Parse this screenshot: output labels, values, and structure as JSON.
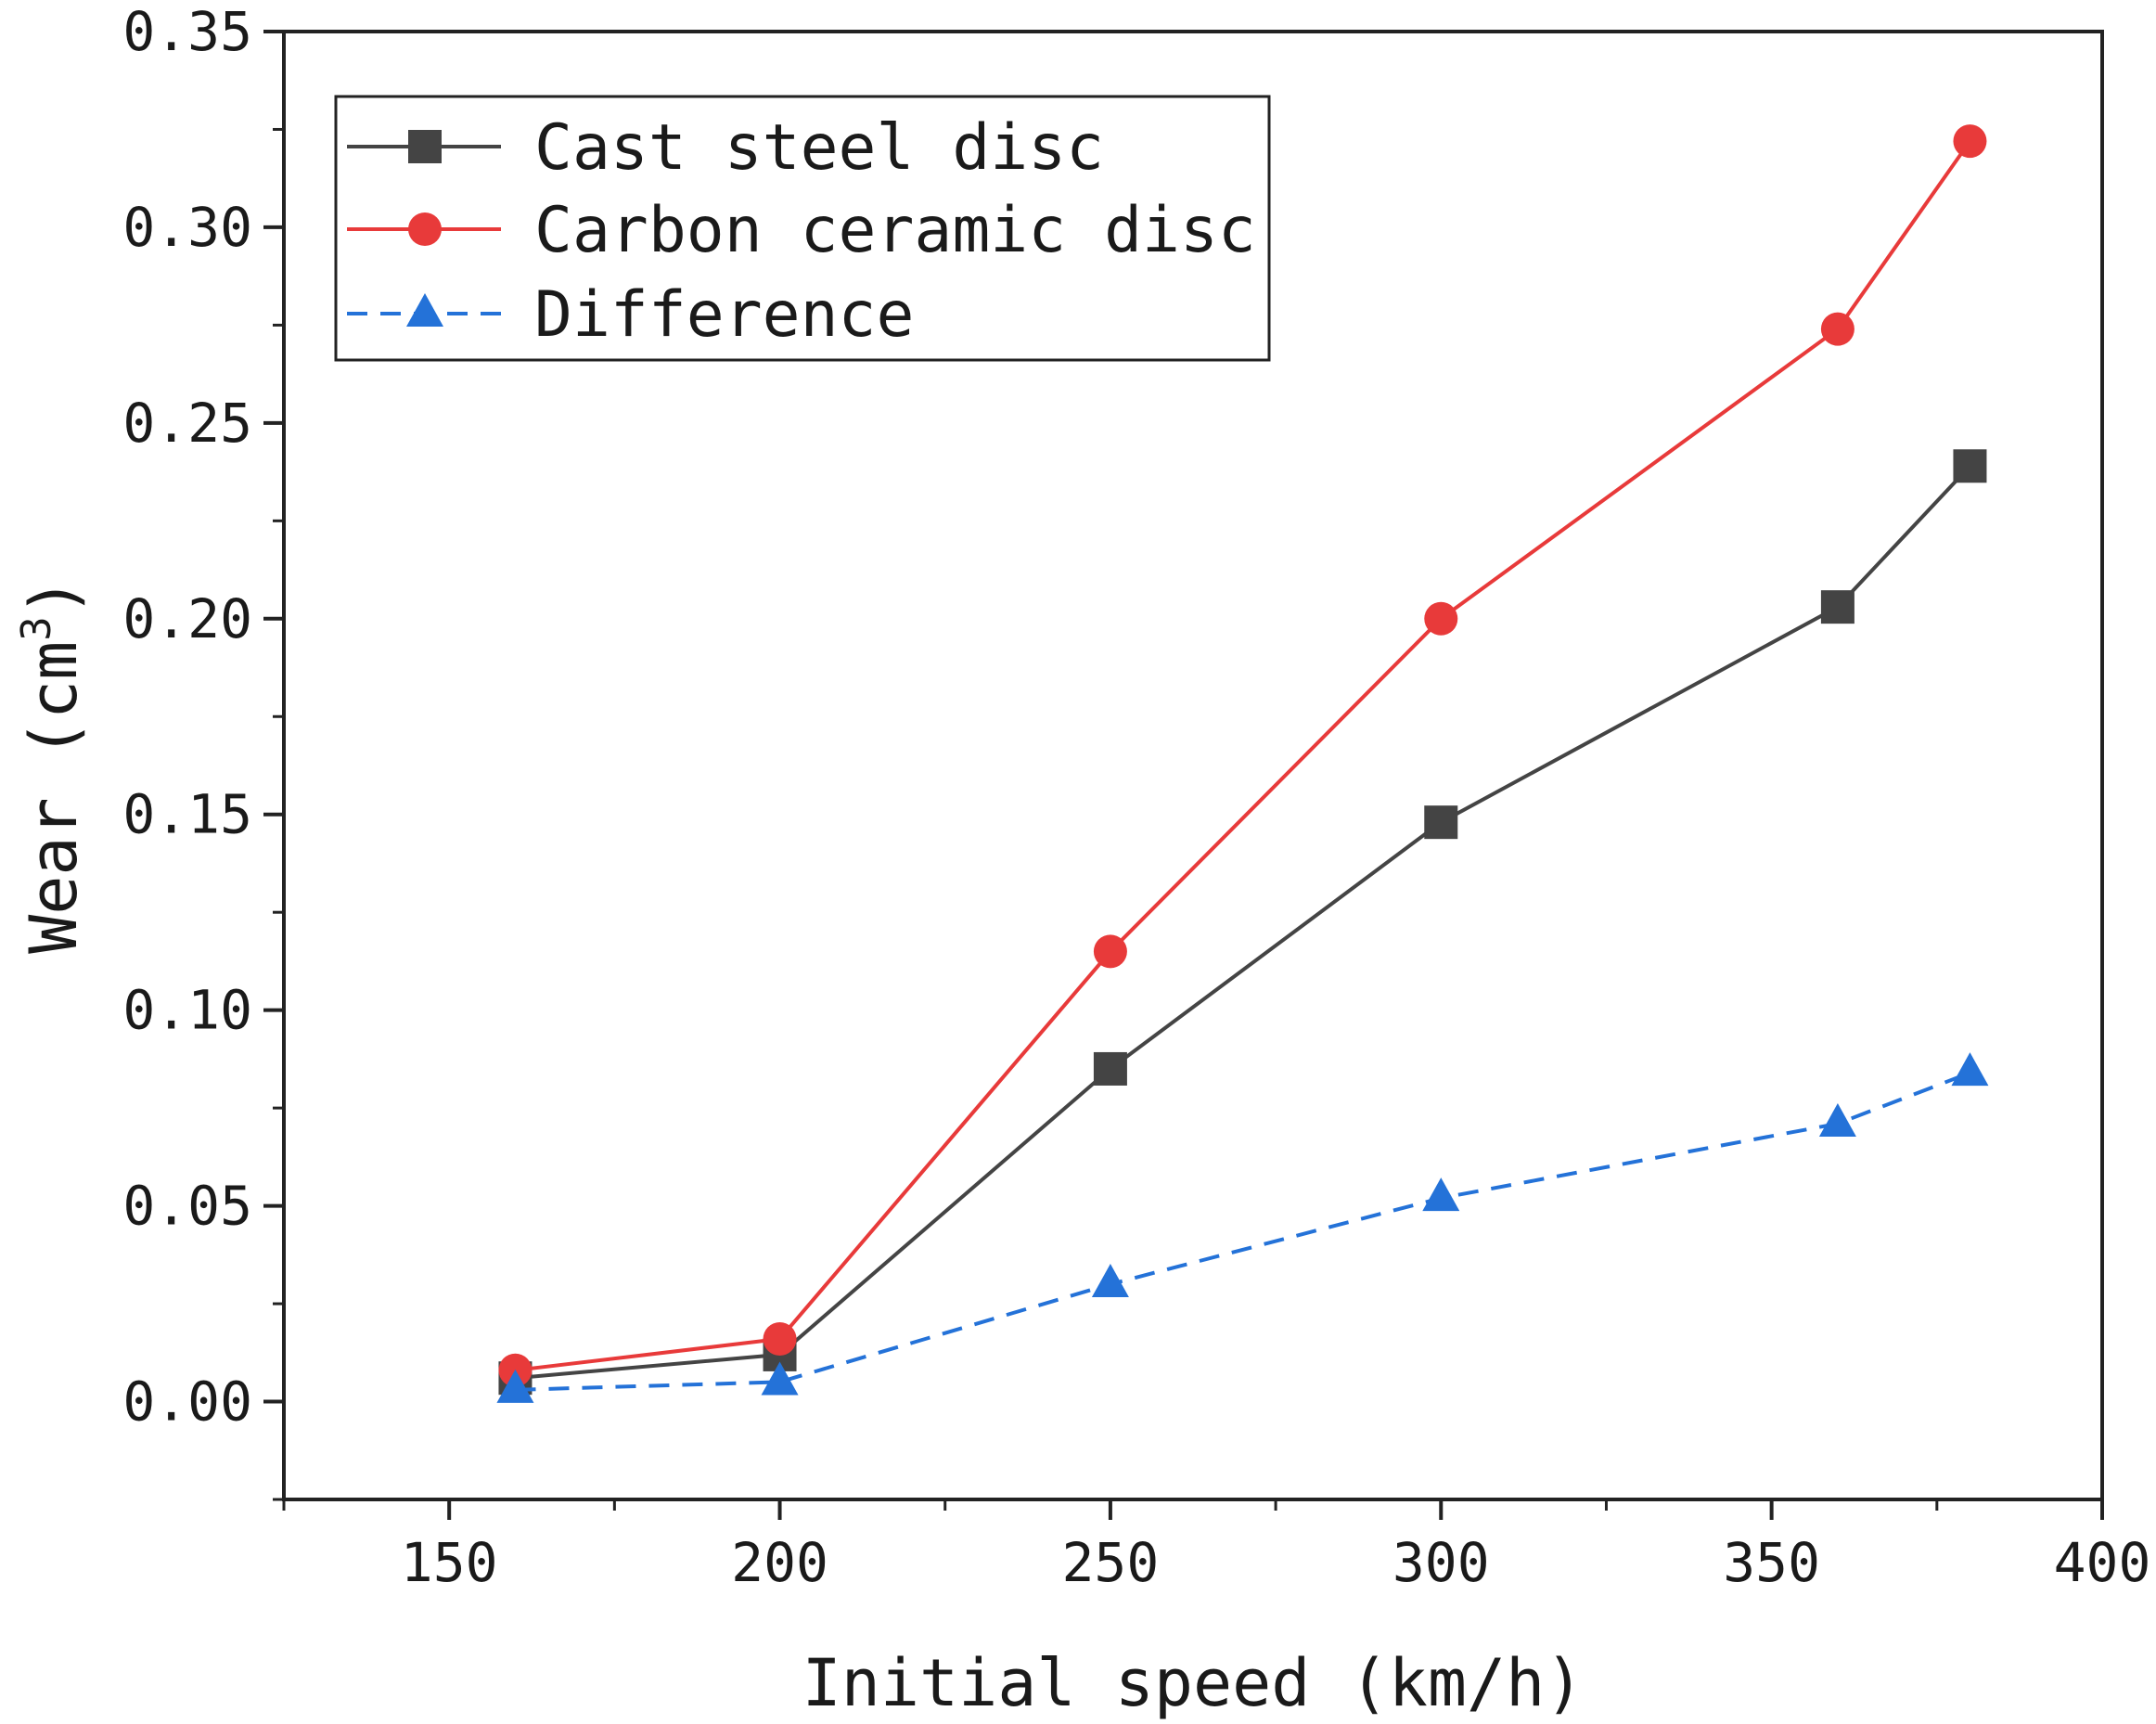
{
  "chart_data": {
    "type": "line",
    "xlabel": "Initial speed (km/h)",
    "ylabel_main": "Wear (cm",
    "ylabel_sup": "3",
    "ylabel_close": ")",
    "xlim": [
      125,
      400
    ],
    "ylim": [
      -0.025,
      0.35
    ],
    "x_ticks": [
      150,
      200,
      250,
      300,
      350,
      400
    ],
    "x_tick_labels": [
      "150",
      "200",
      "250",
      "300",
      "350",
      "400"
    ],
    "y_ticks": [
      0.0,
      0.05,
      0.1,
      0.15,
      0.2,
      0.25,
      0.3,
      0.35
    ],
    "y_tick_labels": [
      "0.00",
      "0.05",
      "0.10",
      "0.15",
      "0.20",
      "0.25",
      "0.30",
      "0.35"
    ],
    "legend_position": "top-left",
    "series": [
      {
        "name": "Cast steel disc",
        "color": "#444444",
        "marker": "square",
        "dash": "solid",
        "x": [
          160,
          200,
          250,
          300,
          360,
          380
        ],
        "values": [
          0.006,
          0.012,
          0.085,
          0.148,
          0.203,
          0.239
        ]
      },
      {
        "name": "Carbon ceramic disc",
        "color": "#e83a3a",
        "marker": "circle",
        "dash": "solid",
        "x": [
          160,
          200,
          250,
          300,
          360,
          380
        ],
        "values": [
          0.008,
          0.016,
          0.115,
          0.2,
          0.274,
          0.322
        ]
      },
      {
        "name": "Difference",
        "color": "#2472d8",
        "marker": "triangle",
        "dash": "dashed",
        "x": [
          160,
          200,
          250,
          300,
          360,
          380
        ],
        "values": [
          0.003,
          0.005,
          0.03,
          0.052,
          0.071,
          0.084
        ]
      }
    ]
  }
}
